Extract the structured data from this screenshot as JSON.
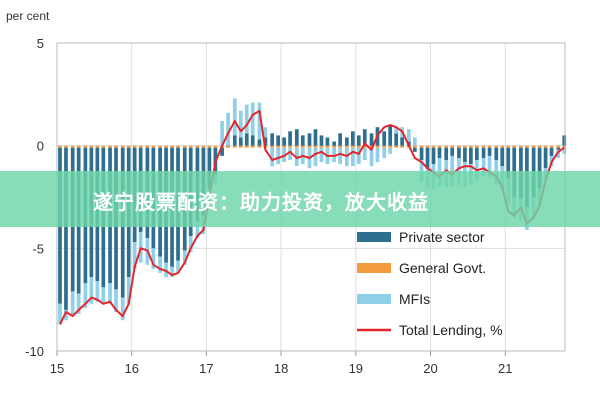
{
  "chart_data": {
    "type": "bar",
    "ylabel": "per cent",
    "ylim": [
      -10,
      5
    ],
    "yticks": [
      5,
      0,
      -5,
      -10
    ],
    "xlim": [
      2015,
      2021.8
    ],
    "xticks": [
      2015,
      2016,
      2017,
      2018,
      2019,
      2020,
      2021
    ],
    "xtick_labels": [
      "15",
      "16",
      "17",
      "18",
      "19",
      "20",
      "21"
    ],
    "grid": true,
    "legend_position": "bottom-right",
    "stacked": true,
    "x": [
      2015.04,
      2015.12,
      2015.21,
      2015.29,
      2015.38,
      2015.46,
      2015.54,
      2015.62,
      2015.71,
      2015.79,
      2015.88,
      2015.96,
      2016.04,
      2016.12,
      2016.21,
      2016.29,
      2016.38,
      2016.46,
      2016.54,
      2016.62,
      2016.71,
      2016.79,
      2016.88,
      2016.96,
      2017.04,
      2017.12,
      2017.21,
      2017.29,
      2017.38,
      2017.46,
      2017.54,
      2017.62,
      2017.71,
      2017.79,
      2017.88,
      2017.96,
      2018.04,
      2018.12,
      2018.21,
      2018.29,
      2018.38,
      2018.46,
      2018.54,
      2018.62,
      2018.71,
      2018.79,
      2018.88,
      2018.96,
      2019.04,
      2019.12,
      2019.21,
      2019.29,
      2019.38,
      2019.46,
      2019.54,
      2019.62,
      2019.71,
      2019.79,
      2019.88,
      2019.96,
      2020.04,
      2020.12,
      2020.21,
      2020.29,
      2020.38,
      2020.46,
      2020.54,
      2020.62,
      2020.71,
      2020.79,
      2020.88,
      2020.96,
      2021.04,
      2021.12,
      2021.21,
      2021.29,
      2021.38,
      2021.46,
      2021.54,
      2021.62,
      2021.71,
      2021.79
    ],
    "series": [
      {
        "name": "Private sector",
        "color": "#2e6e8e",
        "values": [
          -7.6,
          -7.9,
          -7.0,
          -7.1,
          -6.6,
          -6.3,
          -6.5,
          -6.8,
          -6.6,
          -6.9,
          -7.3,
          -6.3,
          -4.6,
          -4.1,
          -4.4,
          -4.9,
          -5.3,
          -5.6,
          -5.8,
          -5.5,
          -5.0,
          -4.3,
          -3.6,
          -3.3,
          -2.0,
          -1.3,
          -0.4,
          0.0,
          0.5,
          0.4,
          0.6,
          0.5,
          0.3,
          0.4,
          0.6,
          0.5,
          0.4,
          0.7,
          0.8,
          0.5,
          0.6,
          0.8,
          0.5,
          0.4,
          0.2,
          0.6,
          0.4,
          0.7,
          0.5,
          0.8,
          0.6,
          0.9,
          0.7,
          1.0,
          0.6,
          0.4,
          0.2,
          -0.2,
          -0.6,
          -1.0,
          -0.8,
          -0.5,
          -0.6,
          -0.4,
          -0.5,
          -0.7,
          -0.8,
          -0.6,
          -0.5,
          -0.4,
          -0.6,
          -0.9,
          -1.5,
          -2.4,
          -2.5,
          -2.9,
          -2.4,
          -2.0,
          -1.0,
          -0.4,
          -0.1,
          0.5
        ]
      },
      {
        "name": "General Govt.",
        "color": "#f29a3d",
        "values": [
          -0.1,
          -0.1,
          -0.1,
          -0.1,
          -0.1,
          -0.1,
          -0.1,
          -0.1,
          -0.1,
          -0.1,
          -0.1,
          -0.1,
          -0.1,
          -0.1,
          -0.1,
          -0.1,
          -0.1,
          -0.1,
          -0.1,
          -0.1,
          -0.1,
          -0.1,
          -0.1,
          -0.1,
          -0.1,
          -0.1,
          -0.1,
          -0.1,
          -0.1,
          -0.1,
          -0.1,
          -0.1,
          -0.1,
          -0.1,
          -0.1,
          -0.1,
          -0.1,
          -0.1,
          -0.1,
          -0.1,
          -0.1,
          -0.1,
          -0.1,
          -0.1,
          -0.1,
          -0.1,
          -0.1,
          -0.1,
          -0.1,
          -0.1,
          -0.1,
          -0.1,
          -0.1,
          -0.1,
          -0.1,
          -0.1,
          -0.1,
          -0.1,
          -0.1,
          -0.1,
          -0.1,
          -0.1,
          -0.1,
          -0.1,
          -0.1,
          -0.1,
          -0.1,
          -0.1,
          -0.1,
          -0.1,
          -0.1,
          -0.1,
          -0.1,
          -0.1,
          -0.1,
          -0.1,
          -0.1,
          -0.1,
          -0.1,
          -0.1,
          -0.1,
          -0.1
        ]
      },
      {
        "name": "MFIs",
        "color": "#8fd0e8",
        "values": [
          -1.0,
          -0.5,
          -1.2,
          -1.0,
          -1.2,
          -1.3,
          -1.0,
          -0.8,
          -1.0,
          -1.1,
          -1.1,
          -1.3,
          -1.3,
          -1.5,
          -1.3,
          -1.0,
          -0.8,
          -0.7,
          -0.5,
          -0.6,
          -0.7,
          -0.8,
          -0.8,
          -0.9,
          -0.7,
          -0.5,
          1.2,
          1.6,
          1.8,
          1.3,
          1.4,
          1.6,
          1.8,
          0.5,
          -0.9,
          -0.8,
          -0.7,
          -0.6,
          -0.9,
          -0.8,
          -1.0,
          -0.9,
          -0.7,
          -0.8,
          -0.7,
          -0.8,
          -0.9,
          -0.9,
          -0.8,
          -0.6,
          -0.9,
          -0.7,
          -0.5,
          -0.3,
          0.3,
          0.5,
          0.6,
          0.4,
          -1.1,
          -1.0,
          -1.2,
          -1.4,
          -1.3,
          -1.5,
          -1.3,
          -1.2,
          -1.0,
          -1.0,
          -0.9,
          -1.0,
          -1.2,
          -1.1,
          -1.2,
          -1.0,
          -1.0,
          -1.1,
          -1.0,
          -0.8,
          -0.6,
          -0.5,
          -0.4,
          -0.3
        ]
      }
    ],
    "total_lending": {
      "name": "Total Lending, %",
      "color": "#e3262c",
      "values": [
        -8.7,
        -8.1,
        -8.3,
        -8.0,
        -7.7,
        -7.4,
        -7.5,
        -7.7,
        -7.6,
        -8.0,
        -8.3,
        -7.7,
        -5.9,
        -5.0,
        -5.1,
        -5.8,
        -6.0,
        -6.1,
        -6.3,
        -6.2,
        -5.7,
        -5.0,
        -4.4,
        -4.1,
        -2.5,
        -0.8,
        0.0,
        0.6,
        1.2,
        0.7,
        1.0,
        1.5,
        1.7,
        -0.2,
        -0.7,
        -0.6,
        -0.5,
        -0.3,
        -0.6,
        -0.5,
        -0.6,
        -0.4,
        -0.3,
        -0.5,
        -0.5,
        -0.4,
        -0.5,
        -0.3,
        -0.4,
        0.1,
        -0.2,
        0.5,
        0.9,
        1.0,
        0.9,
        0.7,
        0.0,
        -0.6,
        -0.8,
        -1.1,
        -1.3,
        -1.5,
        -1.2,
        -1.4,
        -1.1,
        -1.0,
        -1.0,
        -1.2,
        -1.1,
        -1.3,
        -1.5,
        -2.0,
        -3.2,
        -3.4,
        -3.0,
        -3.8,
        -3.5,
        -2.9,
        -1.7,
        -0.8,
        -0.3,
        -0.1
      ]
    }
  },
  "banner": {
    "text": "遂宁股票配资：助力投资，放大收益"
  }
}
